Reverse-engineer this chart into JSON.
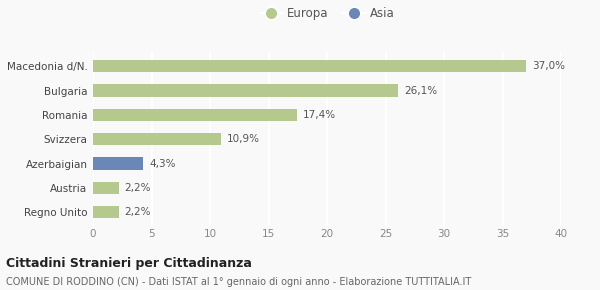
{
  "categories": [
    "Regno Unito",
    "Austria",
    "Azerbaigian",
    "Svizzera",
    "Romania",
    "Bulgaria",
    "Macedonia d/N."
  ],
  "values": [
    2.2,
    2.2,
    4.3,
    10.9,
    17.4,
    26.1,
    37.0
  ],
  "labels": [
    "2,2%",
    "2,2%",
    "4,3%",
    "10,9%",
    "17,4%",
    "26,1%",
    "37,0%"
  ],
  "colors": [
    "#b5c98e",
    "#b5c98e",
    "#6b87b8",
    "#b5c98e",
    "#b5c98e",
    "#b5c98e",
    "#b5c98e"
  ],
  "legend_items": [
    {
      "label": "Europa",
      "color": "#b5c98e"
    },
    {
      "label": "Asia",
      "color": "#6b87b8"
    }
  ],
  "xlim": [
    0,
    40
  ],
  "xticks": [
    0,
    5,
    10,
    15,
    20,
    25,
    30,
    35,
    40
  ],
  "title": "Cittadini Stranieri per Cittadinanza",
  "subtitle": "COMUNE DI RODDINO (CN) - Dati ISTAT al 1° gennaio di ogni anno - Elaborazione TUTTITALIA.IT",
  "background_color": "#f9f9f9",
  "grid_color": "#ffffff",
  "bar_height": 0.5
}
